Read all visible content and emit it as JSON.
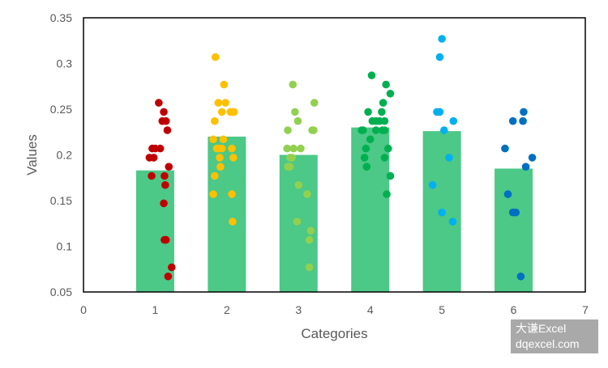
{
  "chart_data": {
    "type": "bar",
    "xlabel": "Categories",
    "ylabel": "Values",
    "xlim": [
      0,
      7
    ],
    "ylim": [
      0.05,
      0.35
    ],
    "x_ticks": [
      "0",
      "1",
      "2",
      "3",
      "4",
      "5",
      "6",
      "7"
    ],
    "y_ticks": [
      "0.05",
      "0.1",
      "0.15",
      "0.2",
      "0.25",
      "0.3",
      "0.35"
    ],
    "grid": false,
    "bar_color": "#4CC887",
    "bars": [
      {
        "x": 1,
        "value": 0.183
      },
      {
        "x": 2,
        "value": 0.22
      },
      {
        "x": 3,
        "value": 0.2
      },
      {
        "x": 4,
        "value": 0.23
      },
      {
        "x": 5,
        "value": 0.226
      },
      {
        "x": 6,
        "value": 0.185
      }
    ],
    "scatter_series": [
      {
        "category": 1,
        "color": "#C00000",
        "points": [
          [
            0.92,
            0.197
          ],
          [
            0.96,
            0.207
          ],
          [
            0.98,
            0.197
          ],
          [
            1.0,
            0.207
          ],
          [
            1.05,
            0.257
          ],
          [
            1.07,
            0.207
          ],
          [
            1.1,
            0.237
          ],
          [
            1.12,
            0.247
          ],
          [
            1.15,
            0.237
          ],
          [
            1.17,
            0.227
          ],
          [
            0.95,
            0.177
          ],
          [
            1.13,
            0.177
          ],
          [
            1.19,
            0.187
          ],
          [
            1.14,
            0.167
          ],
          [
            1.12,
            0.147
          ],
          [
            1.13,
            0.107
          ],
          [
            1.15,
            0.107
          ],
          [
            1.23,
            0.077
          ],
          [
            1.18,
            0.067
          ]
        ]
      },
      {
        "category": 2,
        "color": "#FFC000",
        "points": [
          [
            1.84,
            0.307
          ],
          [
            1.96,
            0.277
          ],
          [
            1.88,
            0.257
          ],
          [
            1.98,
            0.257
          ],
          [
            1.93,
            0.247
          ],
          [
            2.05,
            0.247
          ],
          [
            2.08,
            0.247
          ],
          [
            2.1,
            0.247
          ],
          [
            1.83,
            0.237
          ],
          [
            1.81,
            0.217
          ],
          [
            1.95,
            0.217
          ],
          [
            1.86,
            0.207
          ],
          [
            1.89,
            0.207
          ],
          [
            1.93,
            0.207
          ],
          [
            2.07,
            0.207
          ],
          [
            1.9,
            0.197
          ],
          [
            2.09,
            0.197
          ],
          [
            1.91,
            0.187
          ],
          [
            1.83,
            0.177
          ],
          [
            1.81,
            0.157
          ],
          [
            2.07,
            0.157
          ],
          [
            2.08,
            0.127
          ]
        ]
      },
      {
        "category": 3,
        "color": "#92D050",
        "points": [
          [
            2.92,
            0.277
          ],
          [
            2.95,
            0.247
          ],
          [
            3.22,
            0.257
          ],
          [
            2.99,
            0.237
          ],
          [
            2.85,
            0.227
          ],
          [
            3.19,
            0.227
          ],
          [
            3.21,
            0.227
          ],
          [
            2.84,
            0.207
          ],
          [
            2.93,
            0.207
          ],
          [
            3.03,
            0.207
          ],
          [
            2.88,
            0.197
          ],
          [
            2.91,
            0.197
          ],
          [
            2.85,
            0.187
          ],
          [
            2.88,
            0.187
          ],
          [
            3.0,
            0.167
          ],
          [
            3.12,
            0.157
          ],
          [
            2.98,
            0.127
          ],
          [
            3.17,
            0.117
          ],
          [
            3.15,
            0.107
          ],
          [
            3.15,
            0.077
          ]
        ]
      },
      {
        "category": 4,
        "color": "#00B050",
        "points": [
          [
            4.02,
            0.287
          ],
          [
            4.22,
            0.277
          ],
          [
            4.28,
            0.267
          ],
          [
            4.18,
            0.257
          ],
          [
            3.97,
            0.247
          ],
          [
            4.16,
            0.247
          ],
          [
            4.03,
            0.237
          ],
          [
            4.08,
            0.237
          ],
          [
            4.13,
            0.237
          ],
          [
            4.2,
            0.237
          ],
          [
            3.88,
            0.227
          ],
          [
            3.9,
            0.227
          ],
          [
            4.08,
            0.227
          ],
          [
            4.17,
            0.227
          ],
          [
            4.2,
            0.227
          ],
          [
            4.0,
            0.217
          ],
          [
            3.94,
            0.207
          ],
          [
            4.25,
            0.207
          ],
          [
            3.92,
            0.197
          ],
          [
            4.2,
            0.197
          ],
          [
            3.95,
            0.187
          ],
          [
            4.28,
            0.177
          ],
          [
            4.23,
            0.157
          ]
        ]
      },
      {
        "category": 5,
        "color": "#00B0F0",
        "points": [
          [
            5.0,
            0.327
          ],
          [
            4.97,
            0.307
          ],
          [
            4.93,
            0.247
          ],
          [
            4.97,
            0.247
          ],
          [
            5.16,
            0.237
          ],
          [
            5.03,
            0.227
          ],
          [
            5.1,
            0.197
          ],
          [
            4.87,
            0.167
          ],
          [
            5.0,
            0.137
          ],
          [
            5.15,
            0.127
          ]
        ]
      },
      {
        "category": 6,
        "color": "#0070C0",
        "points": [
          [
            6.14,
            0.247
          ],
          [
            5.99,
            0.237
          ],
          [
            6.13,
            0.237
          ],
          [
            5.88,
            0.207
          ],
          [
            6.26,
            0.197
          ],
          [
            6.17,
            0.187
          ],
          [
            5.92,
            0.157
          ],
          [
            5.99,
            0.137
          ],
          [
            6.03,
            0.137
          ],
          [
            6.1,
            0.067
          ]
        ]
      }
    ]
  },
  "watermark": {
    "line1": "大谦Excel",
    "line2": "dqexcel.com"
  }
}
